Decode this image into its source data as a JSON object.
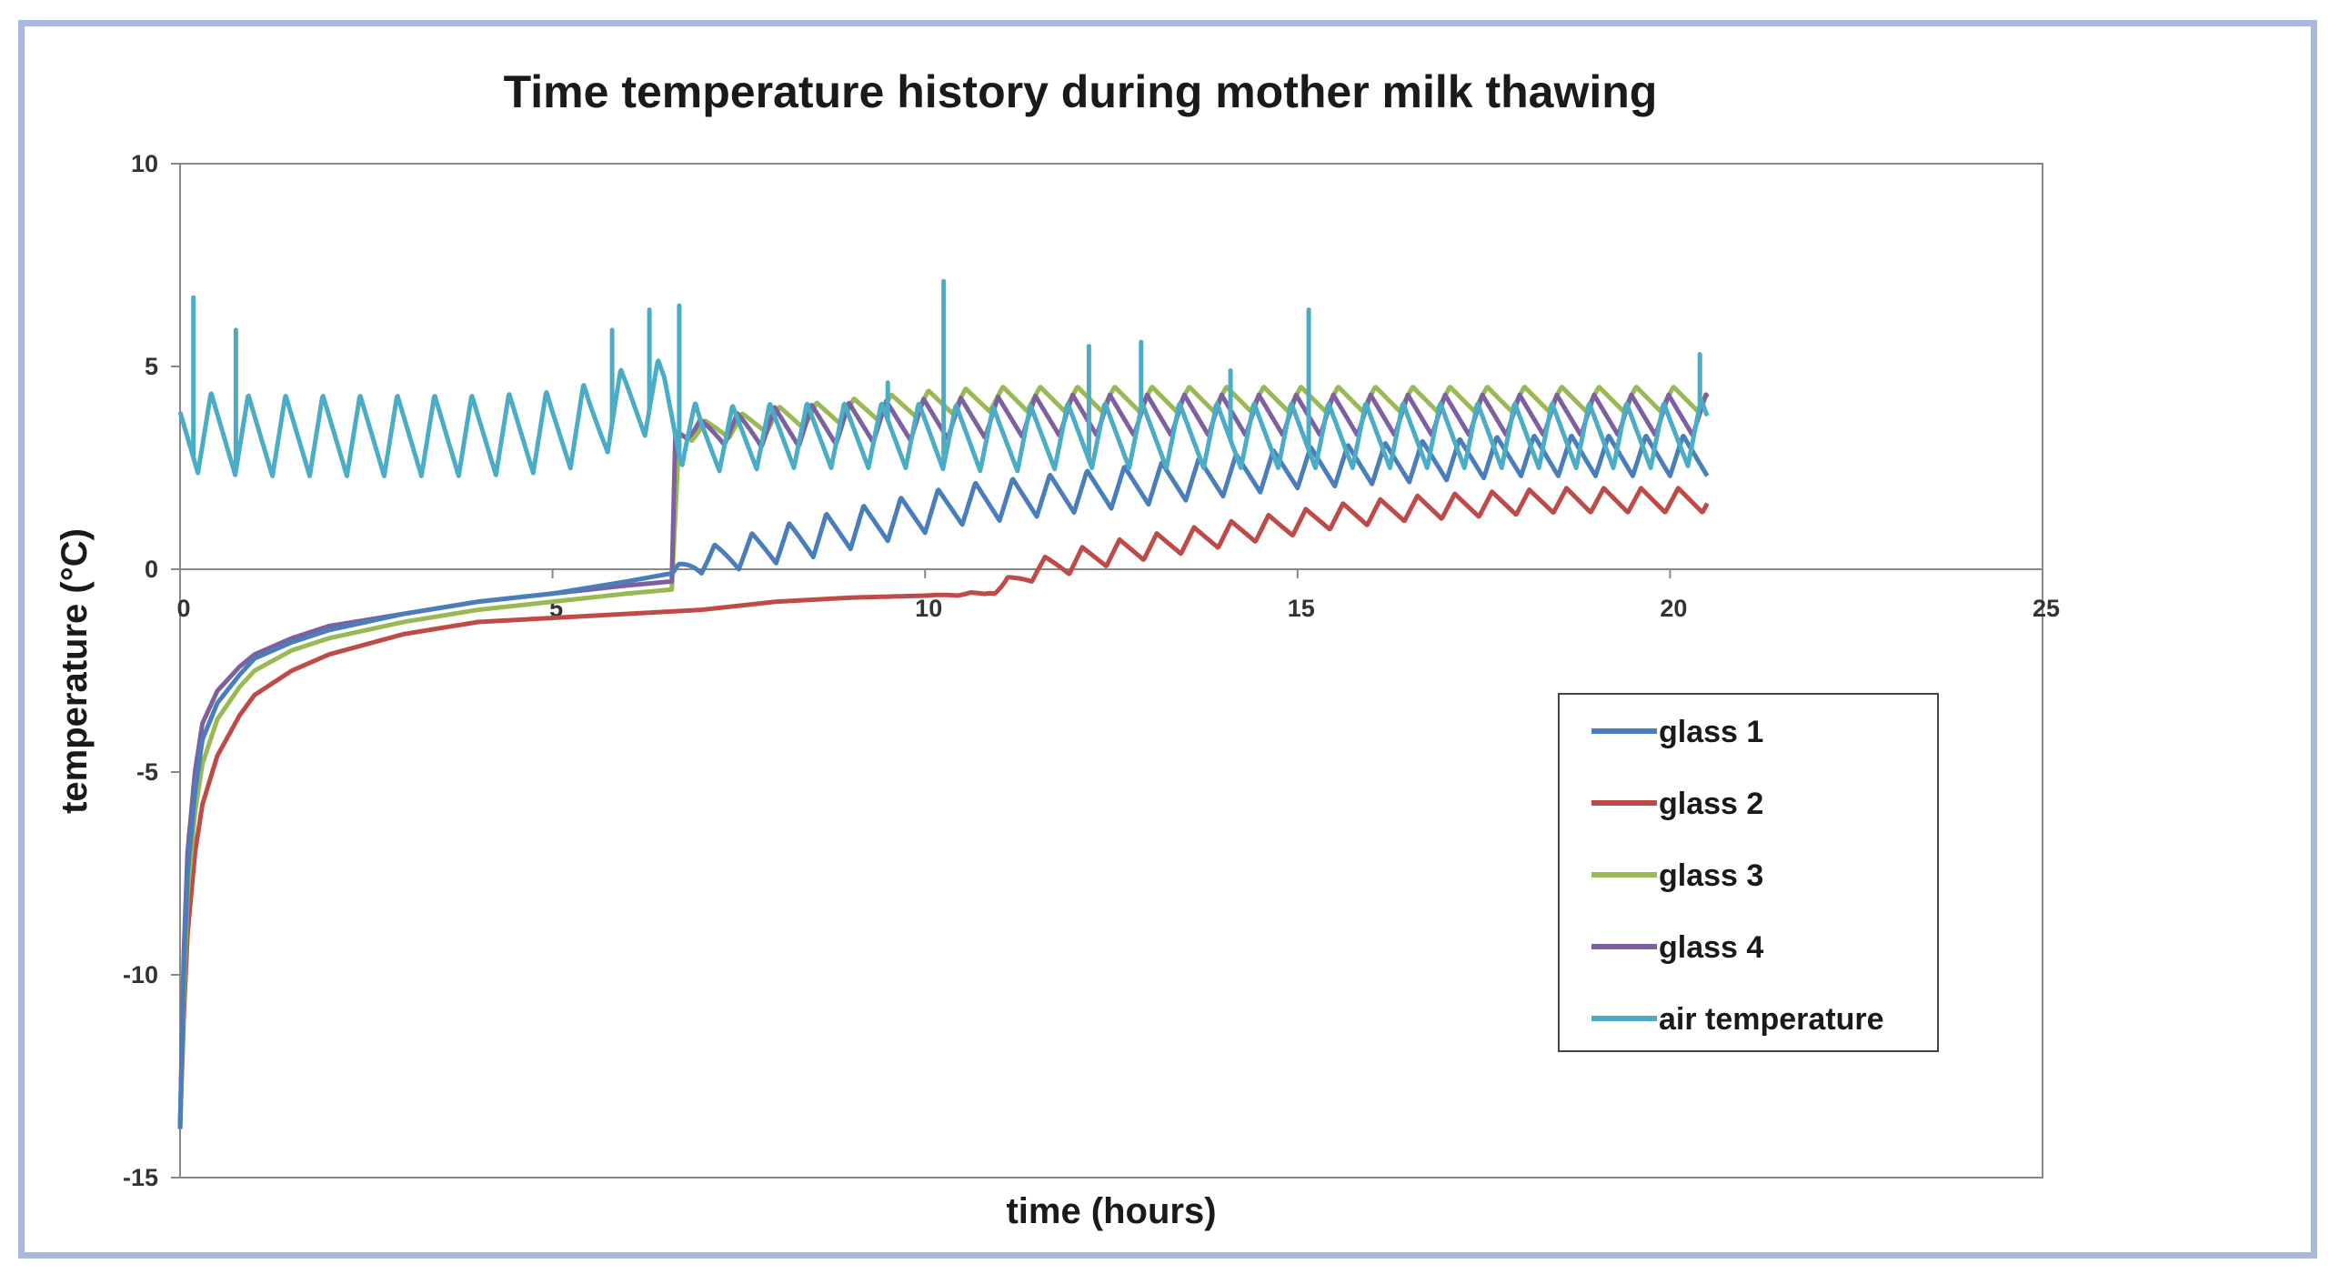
{
  "chart_data": {
    "type": "line",
    "title": "Time temperature history during mother milk thawing",
    "xlabel": "time (hours)",
    "ylabel": "temperature (°C)",
    "xlim": [
      0,
      25
    ],
    "ylim": [
      -15,
      10
    ],
    "x_ticks": [
      0,
      5,
      10,
      15,
      20,
      25
    ],
    "y_ticks": [
      10,
      5,
      0,
      -5,
      -10,
      -15
    ],
    "x_tick_labels": [
      "0",
      "5",
      "10",
      "15",
      "20",
      "25"
    ],
    "y_tick_labels": [
      "10",
      "5",
      "0",
      "-5",
      "-10",
      "-15"
    ],
    "grid": false,
    "legend_position": "bottom-right",
    "series": [
      {
        "name": "glass 1",
        "color": "#4a7ebb",
        "x": [
          0,
          0.05,
          0.1,
          0.2,
          0.3,
          0.5,
          0.8,
          1,
          1.5,
          2,
          3,
          4,
          5,
          6,
          6.6,
          6.7,
          7,
          7.5,
          8,
          8.5,
          9,
          9.5,
          10,
          10.5,
          11,
          11.5,
          12,
          12.5,
          13,
          13.5,
          14,
          14.5,
          15,
          15.5,
          16,
          16.5,
          17,
          17.5,
          18,
          18.5,
          19,
          19.5,
          20,
          20.5
        ],
        "values": [
          -13.8,
          -10,
          -7.5,
          -5.5,
          -4.2,
          -3.3,
          -2.6,
          -2.2,
          -1.8,
          -1.5,
          -1.1,
          -0.8,
          -0.6,
          -0.3,
          -0.1,
          0,
          0.2,
          0.4,
          0.6,
          0.8,
          1.0,
          1.2,
          1.4,
          1.6,
          1.7,
          1.8,
          1.9,
          2.0,
          2.1,
          2.2,
          2.3,
          2.4,
          2.5,
          2.55,
          2.6,
          2.65,
          2.7,
          2.75,
          2.8,
          2.8,
          2.8,
          2.8,
          2.8,
          2.8
        ],
        "osc_amp": [
          0,
          0,
          0,
          0,
          0,
          0,
          0,
          0,
          0,
          0,
          0,
          0,
          0,
          0,
          0,
          0.15,
          0.3,
          0.4,
          0.45,
          0.5,
          0.5,
          0.5,
          0.5,
          0.5,
          0.5,
          0.5,
          0.5,
          0.5,
          0.5,
          0.5,
          0.5,
          0.5,
          0.5,
          0.5,
          0.5,
          0.5,
          0.5,
          0.5,
          0.5,
          0.5,
          0.5,
          0.5,
          0.5,
          0.5
        ]
      },
      {
        "name": "glass 2",
        "color": "#be4b48",
        "x": [
          0,
          0.05,
          0.1,
          0.2,
          0.3,
          0.5,
          0.8,
          1,
          1.5,
          2,
          3,
          4,
          5,
          6,
          7,
          8,
          9,
          10,
          10.8,
          11.2,
          11.5,
          12,
          12.5,
          13,
          13.5,
          14,
          14.5,
          15,
          15.5,
          16,
          16.5,
          17,
          17.5,
          18,
          18.5,
          19,
          19.5,
          20,
          20.5
        ],
        "values": [
          -13.8,
          -11,
          -9,
          -7,
          -5.8,
          -4.6,
          -3.6,
          -3.1,
          -2.5,
          -2.1,
          -1.6,
          -1.3,
          -1.2,
          -1.1,
          -1.0,
          -0.8,
          -0.7,
          -0.65,
          -0.6,
          -0.3,
          0.0,
          0.2,
          0.4,
          0.55,
          0.7,
          0.85,
          1.0,
          1.15,
          1.3,
          1.4,
          1.5,
          1.55,
          1.6,
          1.65,
          1.7,
          1.7,
          1.7,
          1.7,
          1.7
        ],
        "osc_amp": [
          0,
          0,
          0,
          0,
          0,
          0,
          0,
          0,
          0,
          0,
          0,
          0,
          0,
          0,
          0,
          0,
          0,
          0,
          0.05,
          0.2,
          0.25,
          0.3,
          0.3,
          0.3,
          0.3,
          0.3,
          0.3,
          0.3,
          0.3,
          0.3,
          0.3,
          0.3,
          0.3,
          0.3,
          0.3,
          0.3,
          0.3,
          0.3,
          0.3
        ]
      },
      {
        "name": "glass 3",
        "color": "#98b954",
        "x": [
          0,
          0.05,
          0.1,
          0.2,
          0.3,
          0.5,
          0.8,
          1,
          1.5,
          2,
          3,
          4,
          5,
          6,
          6.6,
          6.7,
          7,
          8,
          9,
          10,
          11,
          12,
          13,
          14,
          15,
          16,
          17,
          18,
          19,
          20,
          20.5
        ],
        "values": [
          -13.8,
          -10.5,
          -8,
          -6,
          -4.8,
          -3.7,
          -2.9,
          -2.5,
          -2.0,
          -1.7,
          -1.3,
          -1.0,
          -0.8,
          -0.6,
          -0.5,
          3.3,
          3.4,
          3.7,
          3.9,
          4.1,
          4.2,
          4.2,
          4.2,
          4.2,
          4.2,
          4.2,
          4.2,
          4.2,
          4.2,
          4.2,
          4.2
        ],
        "osc_amp": [
          0,
          0,
          0,
          0,
          0,
          0,
          0,
          0,
          0,
          0,
          0,
          0,
          0,
          0,
          0,
          0.1,
          0.25,
          0.3,
          0.3,
          0.3,
          0.3,
          0.3,
          0.3,
          0.3,
          0.3,
          0.3,
          0.3,
          0.3,
          0.3,
          0.3,
          0.3
        ]
      },
      {
        "name": "glass 4",
        "color": "#7d60a0",
        "x": [
          0,
          0.05,
          0.1,
          0.2,
          0.3,
          0.5,
          0.8,
          1,
          1.5,
          2,
          3,
          4,
          5,
          6,
          6.6,
          6.65,
          7,
          8,
          9,
          10,
          11,
          12,
          13,
          14,
          15,
          16,
          17,
          18,
          19,
          20,
          20.5
        ],
        "values": [
          -13.8,
          -9.5,
          -7,
          -5,
          -3.8,
          -3.0,
          -2.4,
          -2.1,
          -1.7,
          -1.4,
          -1.1,
          -0.8,
          -0.6,
          -0.4,
          -0.3,
          3.4,
          3.4,
          3.5,
          3.6,
          3.7,
          3.75,
          3.8,
          3.8,
          3.8,
          3.8,
          3.8,
          3.8,
          3.8,
          3.8,
          3.8,
          3.8
        ],
        "osc_amp": [
          0,
          0,
          0,
          0,
          0,
          0,
          0,
          0,
          0,
          0,
          0,
          0,
          0,
          0,
          0,
          0.1,
          0.3,
          0.5,
          0.5,
          0.5,
          0.5,
          0.5,
          0.5,
          0.5,
          0.5,
          0.5,
          0.5,
          0.5,
          0.5,
          0.5,
          0.5
        ]
      },
      {
        "name": "air temperature",
        "color": "#4bacc6",
        "x": [
          0,
          1,
          2,
          3,
          4,
          5,
          5.5,
          6,
          6.5,
          6.7,
          7,
          8,
          9,
          10,
          11,
          12,
          13,
          14,
          15,
          16,
          17,
          18,
          19,
          20,
          20.5
        ],
        "values": [
          3.4,
          3.3,
          3.3,
          3.3,
          3.3,
          3.4,
          3.6,
          4.1,
          4.3,
          3.5,
          3.2,
          3.3,
          3.3,
          3.3,
          3.2,
          3.3,
          3.3,
          3.3,
          3.3,
          3.3,
          3.3,
          3.3,
          3.3,
          3.3,
          3.4
        ],
        "osc_amp": [
          1.0,
          1.0,
          1.0,
          1.0,
          1.0,
          1.0,
          1.0,
          0.9,
          0.9,
          0.9,
          0.8,
          0.8,
          0.8,
          0.8,
          0.8,
          0.8,
          0.8,
          0.8,
          0.8,
          0.8,
          0.8,
          0.8,
          0.8,
          0.8,
          0.8
        ],
        "spikes": [
          {
            "x": 0.18,
            "y": 6.7
          },
          {
            "x": 0.75,
            "y": 5.9
          },
          {
            "x": 5.8,
            "y": 5.9
          },
          {
            "x": 6.3,
            "y": 6.4
          },
          {
            "x": 6.7,
            "y": 6.5
          },
          {
            "x": 9.5,
            "y": 4.6
          },
          {
            "x": 10.25,
            "y": 7.1
          },
          {
            "x": 12.2,
            "y": 5.5
          },
          {
            "x": 12.9,
            "y": 5.6
          },
          {
            "x": 14.1,
            "y": 4.9
          },
          {
            "x": 15.15,
            "y": 6.4
          },
          {
            "x": 20.4,
            "y": 5.3
          }
        ]
      }
    ],
    "osc_period": 0.5
  }
}
